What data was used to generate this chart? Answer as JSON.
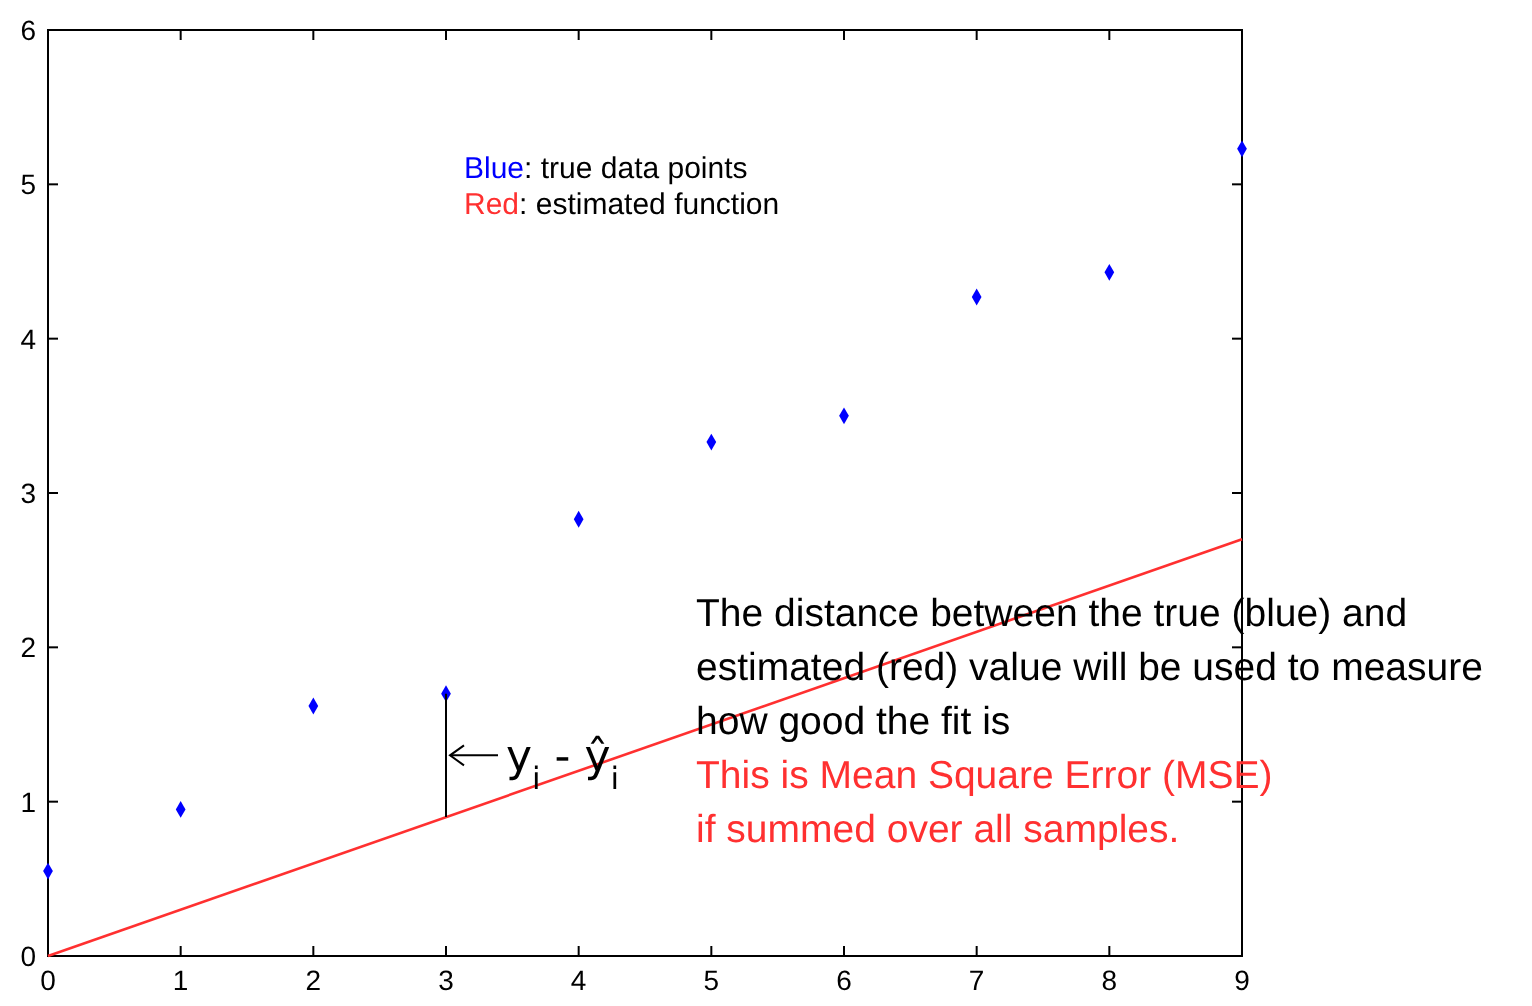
{
  "chart_data": {
    "type": "scatter",
    "x": [
      0,
      1,
      2,
      3,
      4,
      5,
      6,
      7,
      8,
      9
    ],
    "series": [
      {
        "color": "#0000ff",
        "marker": "diamond",
        "values": [
          0.55,
          0.95,
          1.62,
          1.7,
          2.83,
          3.33,
          3.5,
          4.27,
          4.43,
          5.23
        ]
      },
      {
        "type": "line",
        "color": "#ff3030",
        "x": [
          0,
          9
        ],
        "values": [
          0,
          2.7
        ]
      }
    ],
    "xlim": [
      0,
      9
    ],
    "ylim": [
      0,
      6
    ],
    "xticks": [
      0,
      1,
      2,
      3,
      4,
      5,
      6,
      7,
      8,
      9
    ],
    "yticks": [
      0,
      1,
      2,
      3,
      4,
      5,
      6
    ],
    "grid": false,
    "line_style": "solid",
    "annotations": [
      "Blue: true data points",
      "Red: estimated function",
      {
        "text": "y$_{i}$ - ŷ$_{i}$",
        "x": 3,
        "y": 1.7
      },
      "The distance between the true (blue) and estimated (red) value will be used to measure how good the fit is",
      "This is Mean Square Error (MSE) if summed over all samples."
    ]
  }
}
